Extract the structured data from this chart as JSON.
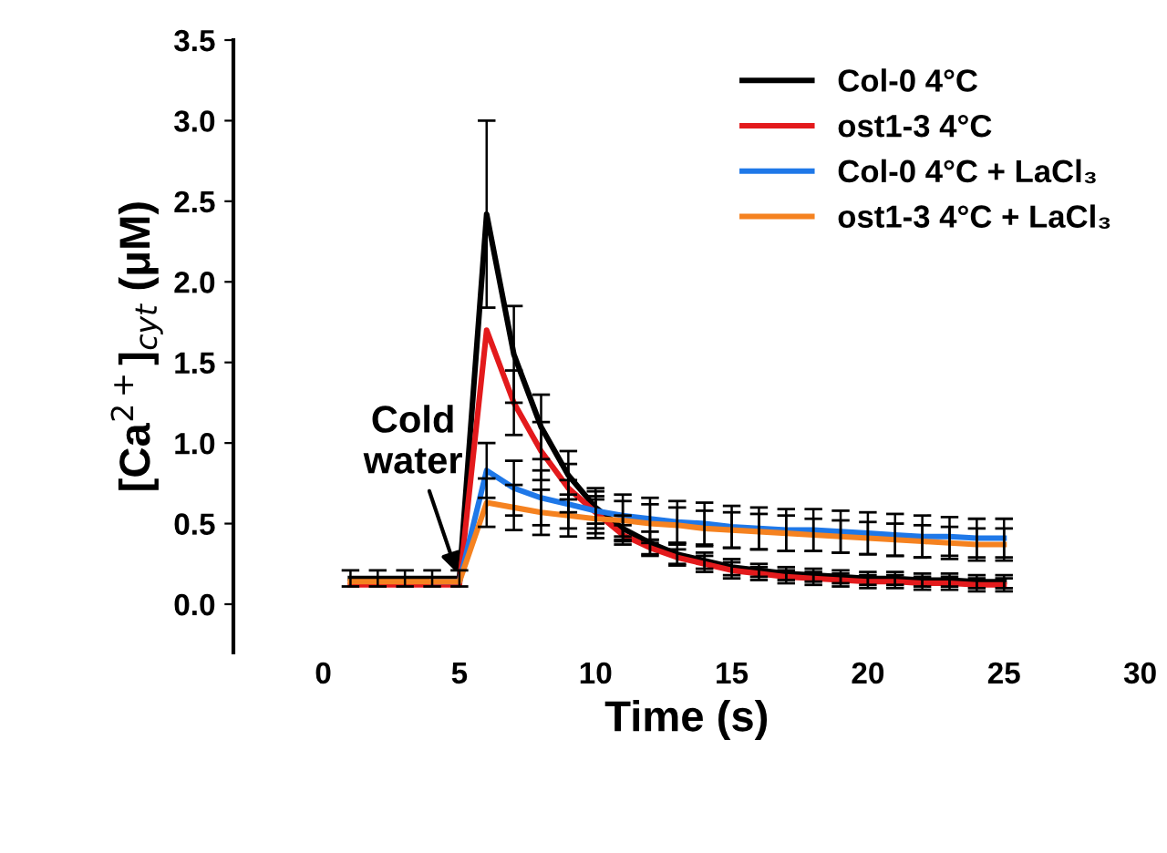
{
  "chart_data": {
    "type": "line",
    "xlabel": "Time (s)",
    "ylabel": "[Ca$^{2+}$]$_{cyt}$ (μM)",
    "x": [
      1,
      2,
      3,
      4,
      5,
      6,
      7,
      8,
      9,
      10,
      11,
      12,
      13,
      14,
      15,
      16,
      17,
      18,
      19,
      20,
      21,
      22,
      23,
      24,
      25
    ],
    "series": [
      {
        "name": "Col-0 4°C",
        "color": "#000000",
        "values": [
          0.16,
          0.16,
          0.16,
          0.16,
          0.16,
          2.42,
          1.55,
          1.1,
          0.8,
          0.6,
          0.47,
          0.38,
          0.31,
          0.27,
          0.23,
          0.21,
          0.19,
          0.18,
          0.17,
          0.16,
          0.16,
          0.15,
          0.15,
          0.14,
          0.14
        ],
        "errors": [
          0.05,
          0.05,
          0.05,
          0.05,
          0.05,
          0.58,
          0.3,
          0.2,
          0.15,
          0.1,
          0.08,
          0.07,
          0.06,
          0.05,
          0.05,
          0.04,
          0.04,
          0.04,
          0.04,
          0.04,
          0.04,
          0.04,
          0.04,
          0.04,
          0.04
        ]
      },
      {
        "name": "ost1-3 4°C",
        "color": "#e31a1c",
        "values": [
          0.12,
          0.12,
          0.12,
          0.12,
          0.12,
          1.7,
          1.25,
          0.95,
          0.72,
          0.57,
          0.43,
          0.35,
          0.29,
          0.25,
          0.21,
          0.19,
          0.17,
          0.16,
          0.15,
          0.14,
          0.14,
          0.13,
          0.13,
          0.12,
          0.12
        ],
        "errors": [
          null,
          null,
          null,
          null,
          null,
          null,
          0.2,
          0.18,
          0.15,
          0.1,
          0.06,
          0.05,
          0.05,
          0.05,
          0.05,
          0.04,
          0.04,
          0.04,
          0.04,
          0.04,
          0.04,
          0.04,
          0.04,
          0.04,
          0.04
        ]
      },
      {
        "name": "Col-0 4°C + LaCl₃",
        "color": "#1f78e8",
        "values": [
          null,
          null,
          null,
          0.14,
          0.14,
          0.83,
          0.72,
          0.66,
          0.62,
          0.58,
          0.55,
          0.53,
          0.51,
          0.5,
          0.48,
          0.47,
          0.46,
          0.46,
          0.45,
          0.44,
          0.43,
          0.42,
          0.42,
          0.41,
          0.41
        ],
        "errors": [
          null,
          null,
          null,
          null,
          null,
          0.17,
          0.17,
          0.17,
          0.15,
          0.14,
          0.13,
          0.13,
          0.13,
          0.13,
          0.13,
          0.13,
          0.13,
          0.13,
          0.13,
          0.13,
          0.13,
          0.13,
          0.12,
          0.12,
          0.12
        ]
      },
      {
        "name": "ost1-3 4°C + LaCl₃",
        "color": "#f58220",
        "values": [
          0.14,
          0.14,
          0.14,
          0.14,
          0.14,
          0.63,
          0.6,
          0.57,
          0.55,
          0.53,
          0.52,
          0.5,
          0.49,
          0.47,
          0.46,
          0.45,
          0.44,
          0.43,
          0.42,
          0.41,
          0.4,
          0.39,
          0.38,
          0.37,
          0.37
        ],
        "errors": [
          null,
          null,
          null,
          null,
          null,
          0.15,
          0.14,
          0.14,
          0.13,
          0.12,
          0.12,
          0.12,
          0.11,
          0.11,
          0.11,
          0.11,
          0.11,
          0.1,
          0.1,
          0.1,
          0.1,
          0.1,
          0.1,
          0.1,
          0.1
        ]
      }
    ],
    "annotations": [
      {
        "text": "Cold\nwater",
        "x": 5,
        "y": 0.15
      }
    ],
    "xlim": [
      -3.3,
      30
    ],
    "xticks": [
      0,
      5,
      10,
      15,
      20,
      25,
      30
    ],
    "ylim": [
      -0.3,
      3.5
    ],
    "yticks": [
      {
        "value": 0,
        "label": "0.0"
      },
      {
        "value": 0.5,
        "label": "0.5"
      },
      {
        "value": 1,
        "label": "1.0"
      },
      {
        "value": 1.5,
        "label": "1.5"
      },
      {
        "value": 2,
        "label": "2.0"
      },
      {
        "value": 2.5,
        "label": "2.5"
      },
      {
        "value": 3,
        "label": "3.0"
      },
      {
        "value": 3.5,
        "label": "3.5"
      }
    ],
    "grid": false,
    "legend": "top right",
    "marker": "none",
    "line_style": "solid"
  }
}
